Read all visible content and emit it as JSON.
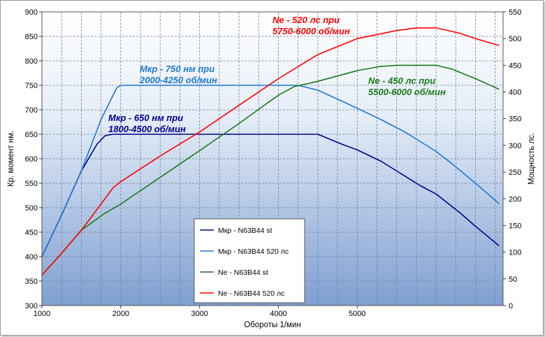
{
  "chart_data": {
    "type": "line",
    "xlabel": "Обороты  1/мин",
    "ylabel": "Кр. момент  нм.",
    "y2label": "Мощность  лс.",
    "xlim": [
      1000,
      6850
    ],
    "ylim": [
      300,
      900
    ],
    "y2lim": [
      0,
      550
    ],
    "x_ticks": [
      "1000",
      "2000",
      "3000",
      "4000",
      "5000"
    ],
    "y_ticks": [
      "300",
      "350",
      "400",
      "450",
      "500",
      "550",
      "600",
      "650",
      "700",
      "750",
      "800",
      "850",
      "900"
    ],
    "y2_ticks": [
      "0",
      "50",
      "100",
      "150",
      "200",
      "250",
      "300",
      "350",
      "400",
      "450",
      "500",
      "550"
    ],
    "grid": true,
    "series": [
      {
        "name": "Мкр -  N63B44  st",
        "axis": "left",
        "color": "#00008b",
        "x": [
          1000,
          1250,
          1500,
          1700,
          1800,
          1900,
          2000,
          2500,
          3000,
          3500,
          4000,
          4500,
          4800,
          5000,
          5300,
          5500,
          5800,
          6000,
          6300,
          6500,
          6800
        ],
        "y": [
          400,
          485,
          575,
          630,
          647,
          650,
          650,
          650,
          650,
          650,
          650,
          650,
          630,
          618,
          595,
          575,
          545,
          528,
          490,
          462,
          422
        ]
      },
      {
        "name": "Мкр - N63B44  520 лс",
        "axis": "left",
        "color": "#1e78d2",
        "x": [
          1000,
          1250,
          1500,
          1750,
          1950,
          2000,
          2500,
          3000,
          3500,
          4000,
          4250,
          4500,
          4800,
          5000,
          5300,
          5600,
          6000,
          6200,
          6500,
          6800
        ],
        "y": [
          400,
          485,
          575,
          680,
          745,
          750,
          750,
          750,
          750,
          750,
          750,
          740,
          718,
          703,
          680,
          655,
          615,
          590,
          550,
          508
        ]
      },
      {
        "name": "Ne  -  N63B44 st",
        "axis": "right",
        "color": "#1a7a1a",
        "x": [
          1000,
          1250,
          1500,
          1800,
          2000,
          2500,
          3000,
          3500,
          4000,
          4200,
          4500,
          5000,
          5300,
          5500,
          6000,
          6200,
          6500,
          6800
        ],
        "y": [
          57,
          98,
          141,
          173,
          190,
          240,
          290,
          341,
          394,
          410,
          420,
          440,
          448,
          450,
          450,
          443,
          425,
          405
        ]
      },
      {
        "name": "Ne  -  N63B44  520 лс",
        "axis": "right",
        "color": "#ff0000",
        "x": [
          1000,
          1250,
          1500,
          1750,
          1900,
          2000,
          2500,
          3000,
          3500,
          4000,
          4300,
          4500,
          5000,
          5500,
          5750,
          6000,
          6300,
          6500,
          6800
        ],
        "y": [
          57,
          98,
          141,
          190,
          220,
          232,
          280,
          325,
          375,
          425,
          452,
          470,
          500,
          515,
          520,
          520,
          510,
          500,
          487
        ]
      }
    ],
    "annotations": [
      {
        "text": [
          "Мкр - 650 нм при",
          "1800-4500 об/мин"
        ],
        "color": "#00008b"
      },
      {
        "text": [
          "Мкр - 750 нм при",
          "2000-4250 об/мин"
        ],
        "color": "#1e78d2"
      },
      {
        "text": [
          "Ne - 520 лс при",
          "5750-6000 об/мин"
        ],
        "color": "#ff0000"
      },
      {
        "text": [
          "Ne - 450 лс при",
          "5500-6000 об/мин"
        ],
        "color": "#1a7a1a"
      }
    ]
  }
}
